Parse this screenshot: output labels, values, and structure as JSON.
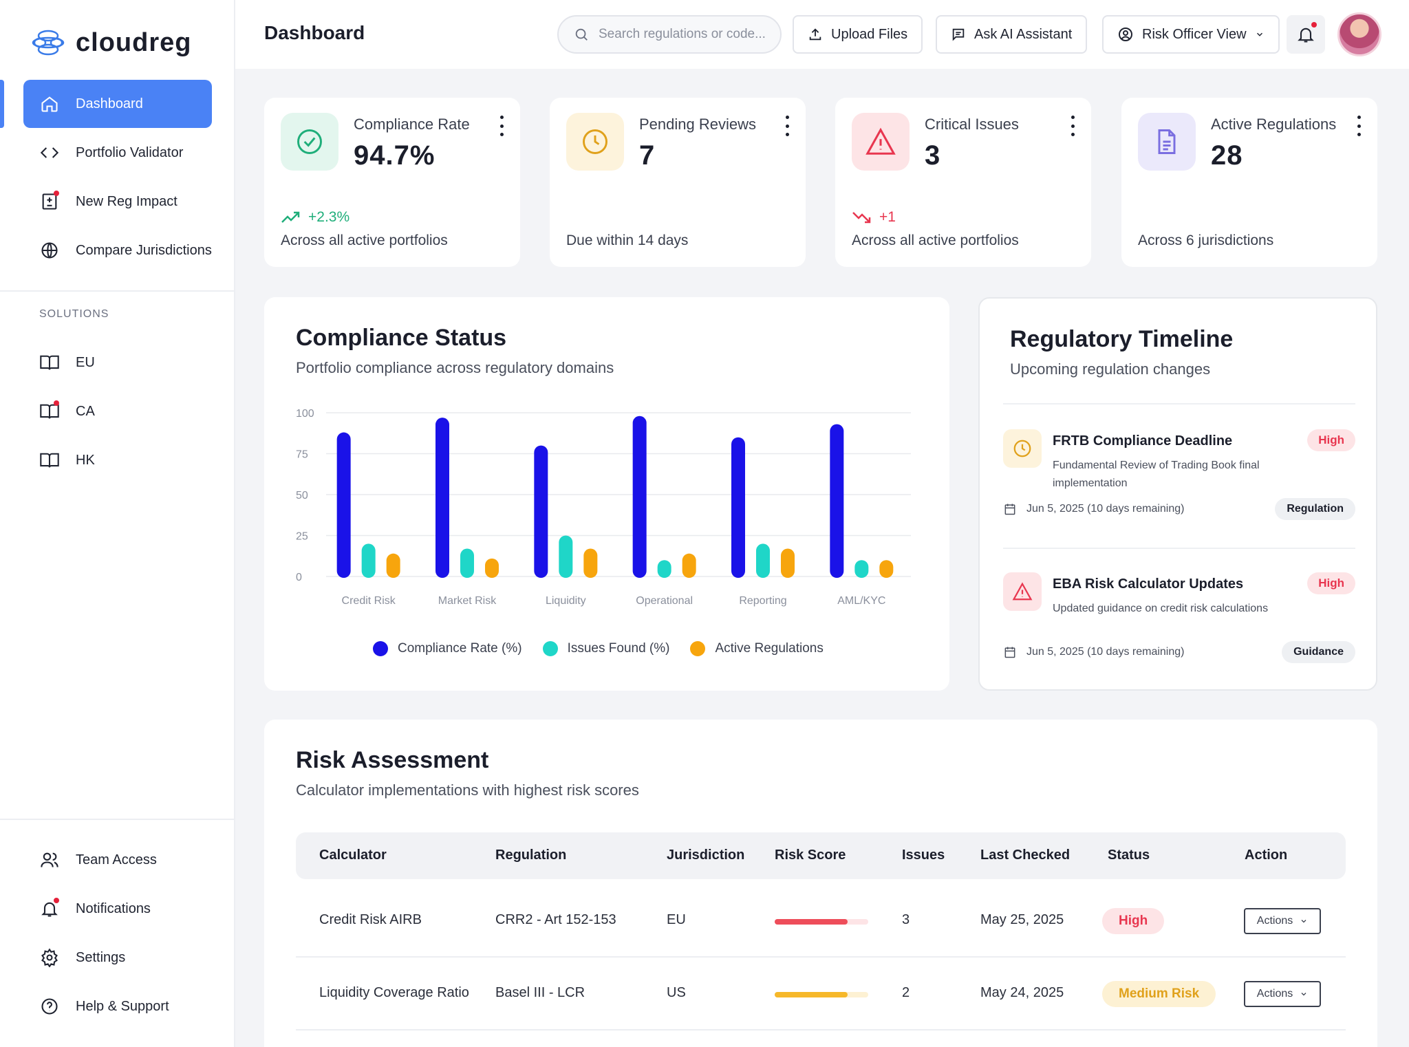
{
  "app": {
    "name": "cloudreg"
  },
  "sidebar": {
    "main_items": [
      {
        "label": "Dashboard",
        "icon": "home-icon"
      },
      {
        "label": "Portfolio Validator",
        "icon": "code-icon"
      },
      {
        "label": "New Reg Impact",
        "icon": "document-diff-icon"
      },
      {
        "label": "Compare Jurisdictions",
        "icon": "globe-icon"
      }
    ],
    "section_label": "SOLUTIONS",
    "solutions": [
      {
        "label": "EU",
        "icon": "book-icon"
      },
      {
        "label": "CA",
        "icon": "book-icon"
      },
      {
        "label": "HK",
        "icon": "book-icon"
      }
    ],
    "bottom_items": [
      {
        "label": "Team Access",
        "icon": "users-icon"
      },
      {
        "label": "Notifications",
        "icon": "bell-icon"
      },
      {
        "label": "Settings",
        "icon": "gear-icon"
      },
      {
        "label": "Help & Support",
        "icon": "help-icon"
      }
    ]
  },
  "header": {
    "title": "Dashboard",
    "search_placeholder": "Search regulations or code...",
    "upload_label": "Upload Files",
    "ai_label": "Ask AI Assistant",
    "view_label": "Risk Officer View"
  },
  "stats": [
    {
      "label": "Compliance Rate",
      "value": "94.7%",
      "trend": "+2.3%",
      "sub": "Across all active portfolios",
      "accent": "#1fae7a",
      "bg": "#e3f6ee"
    },
    {
      "label": "Pending Reviews",
      "value": "7",
      "trend": "",
      "sub": "Due within 14 days",
      "accent": "#e0a11b",
      "bg": "#fdf3dc"
    },
    {
      "label": "Critical Issues",
      "value": "3",
      "trend": "+1",
      "sub": "Across all active portfolios",
      "accent": "#e8364f",
      "bg": "#fde4e6"
    },
    {
      "label": "Active Regulations",
      "value": "28",
      "trend": "",
      "sub": "Across 6 jurisdictions",
      "accent": "#7a6ee0",
      "bg": "#ebe9fb"
    }
  ],
  "compliance": {
    "title": "Compliance Status",
    "subtitle": "Portfolio compliance across regulatory domains"
  },
  "chart_data": {
    "type": "bar",
    "categories": [
      "Credit Risk",
      "Market Risk",
      "Liquidity",
      "Operational",
      "Reporting",
      "AML/KYC"
    ],
    "series": [
      {
        "name": "Compliance Rate (%)",
        "color": "#1a12e8",
        "values": [
          88,
          97,
          80,
          98,
          85,
          93
        ]
      },
      {
        "name": "Issues Found (%)",
        "color": "#1fd6c8",
        "values": [
          20,
          17,
          25,
          10,
          20,
          10
        ]
      },
      {
        "name": "Active Regulations",
        "color": "#f7a50d",
        "values": [
          14,
          11,
          17,
          14,
          17,
          10
        ]
      }
    ],
    "y_ticks": [
      "100",
      "75",
      "50",
      "25",
      "0"
    ],
    "ylim": [
      0,
      100
    ],
    "grid": true,
    "legend": "bottom"
  },
  "timeline": {
    "title": "Regulatory Timeline",
    "subtitle": "Upcoming regulation changes",
    "items": [
      {
        "title": "FRTB Compliance Deadline",
        "desc": "Fundamental Review of Trading Book final implementation",
        "priority": "High",
        "date": "Jun 5, 2025 (10 days remaining)",
        "tag": "Regulation",
        "icon": "clock-icon"
      },
      {
        "title": "EBA Risk Calculator Updates",
        "desc": "Updated guidance on credit risk calculations",
        "priority": "High",
        "date": "Jun 5, 2025 (10 days remaining)",
        "tag": "Guidance",
        "icon": "warning-icon"
      }
    ]
  },
  "risk": {
    "title": "Risk Assessment",
    "subtitle": "Calculator implementations with highest risk scores",
    "columns": [
      "Calculator",
      "Regulation",
      "Jurisdiction",
      "Risk Score",
      "Issues",
      "Last Checked",
      "Status",
      "Action"
    ],
    "rows": [
      {
        "calculator": "Credit Risk AIRB",
        "regulation": "CRR2 - Art 152-153",
        "jurisdiction": "EU",
        "score": 0.78,
        "score_color": "#ee4d5a",
        "issues": "3",
        "last_checked": "May 25, 2025",
        "status": "High",
        "status_bg": "#fde4e6",
        "status_fg": "#e8364f",
        "action": "Actions"
      },
      {
        "calculator": "Liquidity Coverage Ratio",
        "regulation": "Basel III - LCR",
        "jurisdiction": "US",
        "score": 0.78,
        "score_color": "#f6b82a",
        "issues": "2",
        "last_checked": "May 24, 2025",
        "status": "Medium Risk",
        "status_bg": "#fdf1d3",
        "status_fg": "#e0a11b",
        "action": "Actions"
      }
    ]
  }
}
